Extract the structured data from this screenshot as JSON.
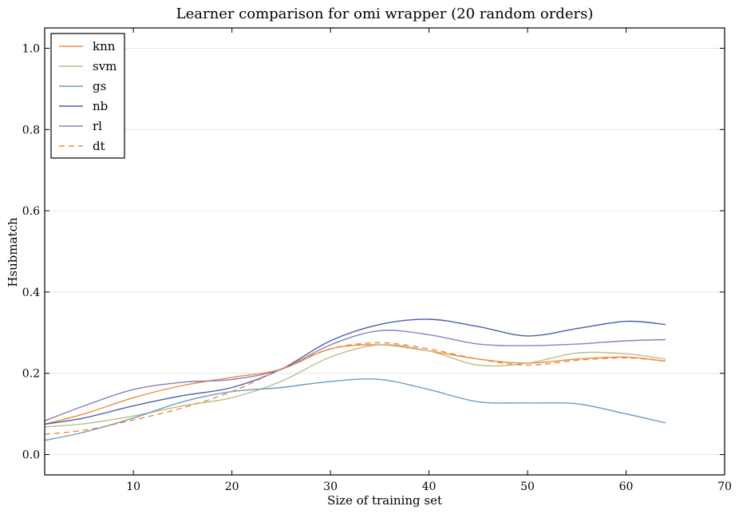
{
  "chart_data": {
    "type": "line",
    "title": "Learner comparison for omi wrapper (20 random orders)",
    "xlabel": "Size of training set",
    "ylabel": "Hsubmatch",
    "xlim": [
      1,
      70
    ],
    "ylim": [
      -0.05,
      1.05
    ],
    "xticks": [
      10,
      20,
      30,
      40,
      50,
      60,
      70
    ],
    "yticks": [
      0.0,
      0.2,
      0.4,
      0.6,
      0.8,
      1.0
    ],
    "xtick_labels": [
      "10",
      "20",
      "30",
      "40",
      "50",
      "60",
      "70"
    ],
    "ytick_labels": [
      "0.0",
      "0.2",
      "0.4",
      "0.6",
      "0.8",
      "1.0"
    ],
    "grid": "horizontal",
    "legend_position": "top-left",
    "series": [
      {
        "name": "knn",
        "color": "#f08a3c",
        "dash": "solid",
        "x": [
          1,
          5,
          10,
          15,
          20,
          25,
          30,
          35,
          40,
          45,
          50,
          55,
          60,
          64
        ],
        "y": [
          0.075,
          0.1,
          0.14,
          0.17,
          0.19,
          0.21,
          0.26,
          0.27,
          0.255,
          0.235,
          0.225,
          0.235,
          0.24,
          0.23
        ]
      },
      {
        "name": "svm",
        "color": "#bcbc8a",
        "dash": "solid",
        "x": [
          1,
          5,
          10,
          15,
          20,
          25,
          30,
          35,
          40,
          45,
          50,
          55,
          60,
          64
        ],
        "y": [
          0.068,
          0.076,
          0.095,
          0.12,
          0.14,
          0.18,
          0.24,
          0.27,
          0.255,
          0.22,
          0.225,
          0.25,
          0.248,
          0.235
        ]
      },
      {
        "name": "gs",
        "color": "#6b9bc3",
        "dash": "solid",
        "x": [
          1,
          5,
          10,
          15,
          20,
          25,
          30,
          35,
          40,
          45,
          50,
          55,
          60,
          64
        ],
        "y": [
          0.035,
          0.055,
          0.09,
          0.13,
          0.155,
          0.165,
          0.18,
          0.185,
          0.16,
          0.13,
          0.127,
          0.125,
          0.1,
          0.078
        ]
      },
      {
        "name": "nb",
        "color": "#4a5fa8",
        "dash": "solid",
        "x": [
          1,
          5,
          10,
          15,
          20,
          25,
          30,
          35,
          40,
          45,
          50,
          55,
          60,
          64
        ],
        "y": [
          0.075,
          0.09,
          0.12,
          0.145,
          0.165,
          0.21,
          0.28,
          0.32,
          0.333,
          0.315,
          0.292,
          0.31,
          0.328,
          0.32
        ]
      },
      {
        "name": "rl",
        "color": "#8a7fbd",
        "dash": "solid",
        "x": [
          1,
          5,
          10,
          15,
          20,
          25,
          30,
          35,
          40,
          45,
          50,
          55,
          60,
          64
        ],
        "y": [
          0.083,
          0.12,
          0.16,
          0.178,
          0.185,
          0.21,
          0.27,
          0.305,
          0.295,
          0.272,
          0.268,
          0.272,
          0.28,
          0.283
        ]
      },
      {
        "name": "dt",
        "color": "#f08a3c",
        "dash": "dashed",
        "x": [
          1,
          5,
          10,
          15,
          20,
          25,
          30,
          35,
          40,
          45,
          50,
          55,
          60,
          64
        ],
        "y": [
          0.05,
          0.06,
          0.085,
          0.115,
          0.155,
          0.21,
          0.26,
          0.275,
          0.26,
          0.235,
          0.22,
          0.232,
          0.238,
          0.23
        ]
      }
    ]
  }
}
